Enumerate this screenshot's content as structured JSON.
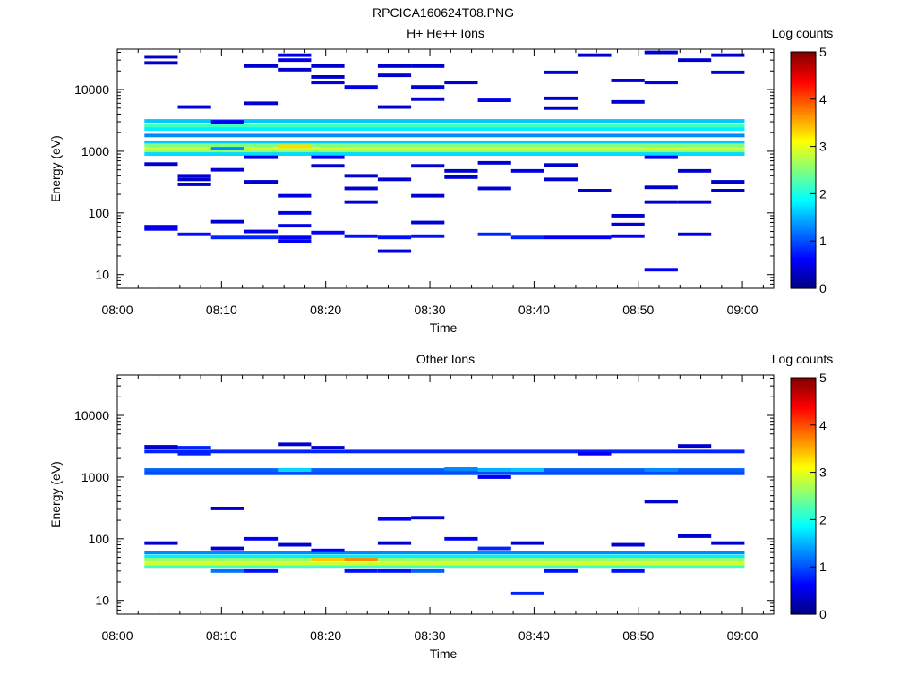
{
  "page": {
    "title": "RPCICA160624T08.PNG"
  },
  "chart_data": [
    {
      "type": "heatmap",
      "title": "H+ He++ Ions",
      "xlabel": "Time",
      "ylabel": "Energy (eV)",
      "y_scale": "log",
      "ylim": [
        6,
        45000
      ],
      "xlim": [
        "08:00",
        "09:03"
      ],
      "x_ticks": [
        "08:00",
        "08:10",
        "08:20",
        "08:30",
        "08:40",
        "08:50",
        "09:00"
      ],
      "y_ticks": [
        "10",
        "100",
        "1000",
        "10000"
      ],
      "colorbar": {
        "label": "Log counts",
        "range": [
          0,
          5
        ],
        "ticks": [
          "0",
          "1",
          "2",
          "3",
          "4",
          "5"
        ]
      },
      "time_columns": [
        "08:02.6",
        "08:05.8",
        "08:09.0",
        "08:12.2",
        "08:15.4",
        "08:18.6",
        "08:21.8",
        "08:25.0",
        "08:28.2",
        "08:31.4",
        "08:34.6",
        "08:37.8",
        "08:41.0",
        "08:44.2",
        "08:47.4",
        "08:50.6",
        "08:53.8",
        "08:57.0"
      ],
      "bands": [
        [
          0,
          1,
          60,
          0.5
        ],
        [
          0,
          1,
          55,
          0.6
        ],
        [
          0,
          18,
          3100,
          1.6
        ],
        [
          0,
          18,
          2600,
          2.2
        ],
        [
          0,
          18,
          2300,
          1.8
        ],
        [
          0,
          18,
          1800,
          1.3
        ],
        [
          0,
          18,
          1400,
          1.6
        ],
        [
          0,
          18,
          1250,
          2.5
        ],
        [
          0,
          18,
          1100,
          2.9
        ],
        [
          0,
          18,
          1000,
          2.6
        ],
        [
          0,
          18,
          900,
          1.7
        ],
        [
          0,
          1,
          620,
          0.4
        ],
        [
          0,
          1,
          27000,
          0.4
        ],
        [
          0,
          1,
          34000,
          0.4
        ],
        [
          1,
          2,
          45,
          0.7
        ],
        [
          1,
          2,
          5200,
          0.5
        ],
        [
          1,
          2,
          350,
          0.4
        ],
        [
          1,
          2,
          290,
          0.4
        ],
        [
          1,
          2,
          400,
          0.4
        ],
        [
          2,
          3,
          40,
          0.8
        ],
        [
          2,
          3,
          3000,
          0.6
        ],
        [
          2,
          3,
          72,
          0.4
        ],
        [
          2,
          3,
          500,
          0.4
        ],
        [
          2,
          3,
          1100,
          1.3
        ],
        [
          3,
          4,
          40,
          0.8
        ],
        [
          3,
          4,
          50,
          0.5
        ],
        [
          3,
          4,
          24000,
          0.4
        ],
        [
          3,
          4,
          6000,
          0.4
        ],
        [
          3,
          4,
          800,
          0.5
        ],
        [
          3,
          4,
          320,
          0.4
        ],
        [
          4,
          5,
          35,
          0.6
        ],
        [
          4,
          5,
          40,
          0.6
        ],
        [
          4,
          5,
          62,
          0.5
        ],
        [
          4,
          5,
          100,
          0.5
        ],
        [
          4,
          5,
          190,
          0.5
        ],
        [
          4,
          5,
          36000,
          0.5
        ],
        [
          4,
          5,
          30000,
          0.5
        ],
        [
          4,
          5,
          21000,
          0.4
        ],
        [
          4,
          5,
          1200,
          3.3
        ],
        [
          5,
          6,
          48,
          0.6
        ],
        [
          5,
          6,
          24000,
          0.4
        ],
        [
          5,
          6,
          16000,
          0.4
        ],
        [
          5,
          6,
          13000,
          0.5
        ],
        [
          5,
          6,
          800,
          0.6
        ],
        [
          5,
          6,
          580,
          0.4
        ],
        [
          6,
          7,
          42,
          0.7
        ],
        [
          6,
          7,
          11000,
          0.5
        ],
        [
          6,
          7,
          400,
          0.4
        ],
        [
          6,
          7,
          250,
          0.4
        ],
        [
          6,
          7,
          150,
          0.4
        ],
        [
          7,
          8,
          40,
          0.7
        ],
        [
          7,
          8,
          24,
          0.5
        ],
        [
          7,
          8,
          24000,
          0.4
        ],
        [
          7,
          8,
          17000,
          0.4
        ],
        [
          7,
          8,
          5200,
          0.4
        ],
        [
          7,
          8,
          350,
          0.4
        ],
        [
          8,
          9,
          42,
          0.7
        ],
        [
          8,
          9,
          70,
          0.4
        ],
        [
          8,
          9,
          24000,
          0.4
        ],
        [
          8,
          9,
          11000,
          0.4
        ],
        [
          8,
          9,
          7000,
          0.4
        ],
        [
          8,
          9,
          190,
          0.4
        ],
        [
          8,
          9,
          580,
          0.4
        ],
        [
          9,
          10,
          13000,
          0.4
        ],
        [
          9,
          10,
          480,
          0.4
        ],
        [
          9,
          10,
          380,
          0.4
        ],
        [
          10,
          11,
          45,
          0.8
        ],
        [
          10,
          11,
          6700,
          0.5
        ],
        [
          10,
          11,
          250,
          0.4
        ],
        [
          10,
          11,
          650,
          0.4
        ],
        [
          11,
          12,
          40,
          0.8
        ],
        [
          11,
          12,
          480,
          0.5
        ],
        [
          12,
          13,
          40,
          0.6
        ],
        [
          12,
          13,
          19000,
          0.4
        ],
        [
          12,
          13,
          7200,
          0.4
        ],
        [
          12,
          13,
          5000,
          0.4
        ],
        [
          12,
          13,
          600,
          0.4
        ],
        [
          12,
          13,
          350,
          0.4
        ],
        [
          13,
          14,
          40,
          0.6
        ],
        [
          13,
          14,
          36000,
          0.4
        ],
        [
          13,
          14,
          230,
          0.4
        ],
        [
          14,
          15,
          42,
          0.6
        ],
        [
          14,
          15,
          14000,
          0.4
        ],
        [
          14,
          15,
          6300,
          0.4
        ],
        [
          14,
          15,
          90,
          0.4
        ],
        [
          14,
          15,
          65,
          0.4
        ],
        [
          15,
          16,
          12,
          0.6
        ],
        [
          15,
          16,
          13000,
          0.5
        ],
        [
          15,
          16,
          40000,
          0.4
        ],
        [
          15,
          16,
          150,
          0.4
        ],
        [
          15,
          16,
          260,
          0.4
        ],
        [
          15,
          16,
          800,
          0.6
        ],
        [
          16,
          17,
          45,
          0.5
        ],
        [
          16,
          17,
          30000,
          0.4
        ],
        [
          16,
          17,
          480,
          0.4
        ],
        [
          16,
          17,
          150,
          0.4
        ],
        [
          17,
          18,
          19000,
          0.4
        ],
        [
          17,
          18,
          36000,
          0.4
        ],
        [
          17,
          18,
          320,
          0.4
        ],
        [
          17,
          18,
          230,
          0.4
        ]
      ]
    },
    {
      "type": "heatmap",
      "title": "Other Ions",
      "xlabel": "Time",
      "ylabel": "Energy (eV)",
      "y_scale": "log",
      "ylim": [
        6,
        45000
      ],
      "xlim": [
        "08:00",
        "09:03"
      ],
      "x_ticks": [
        "08:00",
        "08:10",
        "08:20",
        "08:30",
        "08:40",
        "08:50",
        "09:00"
      ],
      "y_ticks": [
        "10",
        "100",
        "1000",
        "10000"
      ],
      "colorbar": {
        "label": "Log counts",
        "range": [
          0,
          5
        ],
        "ticks": [
          "0",
          "1",
          "2",
          "3",
          "4",
          "5"
        ]
      },
      "time_columns": [
        "08:02.6",
        "08:05.8",
        "08:09.0",
        "08:12.2",
        "08:15.4",
        "08:18.6",
        "08:21.8",
        "08:25.0",
        "08:28.2",
        "08:31.4",
        "08:34.6",
        "08:37.8",
        "08:41.0",
        "08:44.2",
        "08:47.4",
        "08:50.6",
        "08:53.8",
        "08:57.0"
      ],
      "bands": [
        [
          0,
          18,
          60,
          1.3
        ],
        [
          0,
          18,
          52,
          1.8
        ],
        [
          0,
          18,
          46,
          2.6
        ],
        [
          0,
          18,
          40,
          2.9
        ],
        [
          0,
          18,
          35,
          2.2
        ],
        [
          0,
          18,
          1300,
          1.1
        ],
        [
          0,
          18,
          1150,
          1.0
        ],
        [
          0,
          18,
          2600,
          0.8
        ],
        [
          0,
          1,
          3100,
          0.4
        ],
        [
          0,
          1,
          85,
          0.4
        ],
        [
          1,
          2,
          3000,
          0.8
        ],
        [
          1,
          2,
          2400,
          0.8
        ],
        [
          2,
          3,
          30,
          1.2
        ],
        [
          2,
          3,
          310,
          0.4
        ],
        [
          2,
          3,
          70,
          0.4
        ],
        [
          3,
          4,
          30,
          0.7
        ],
        [
          3,
          4,
          100,
          0.6
        ],
        [
          4,
          5,
          1300,
          1.7
        ],
        [
          4,
          5,
          3400,
          0.4
        ],
        [
          4,
          5,
          80,
          0.4
        ],
        [
          5,
          6,
          65,
          0.6
        ],
        [
          5,
          6,
          3000,
          0.4
        ],
        [
          5,
          6,
          46,
          3.4
        ],
        [
          6,
          7,
          46,
          3.7
        ],
        [
          6,
          7,
          30,
          0.7
        ],
        [
          7,
          8,
          30,
          0.7
        ],
        [
          7,
          8,
          210,
          0.6
        ],
        [
          7,
          8,
          85,
          0.4
        ],
        [
          8,
          9,
          30,
          1.1
        ],
        [
          8,
          9,
          220,
          0.4
        ],
        [
          9,
          10,
          100,
          0.6
        ],
        [
          9,
          10,
          1350,
          1.3
        ],
        [
          10,
          11,
          70,
          0.8
        ],
        [
          10,
          11,
          1000,
          0.6
        ],
        [
          10,
          11,
          1300,
          1.5
        ],
        [
          11,
          12,
          13,
          0.8
        ],
        [
          11,
          12,
          85,
          0.4
        ],
        [
          11,
          12,
          1300,
          1.6
        ],
        [
          12,
          13,
          30,
          0.7
        ],
        [
          13,
          14,
          2400,
          0.6
        ],
        [
          14,
          15,
          30,
          0.7
        ],
        [
          14,
          15,
          80,
          0.4
        ],
        [
          15,
          16,
          400,
          0.4
        ],
        [
          15,
          16,
          1300,
          1.3
        ],
        [
          16,
          17,
          110,
          0.4
        ],
        [
          16,
          17,
          3200,
          0.4
        ],
        [
          17,
          18,
          85,
          0.4
        ]
      ]
    }
  ]
}
